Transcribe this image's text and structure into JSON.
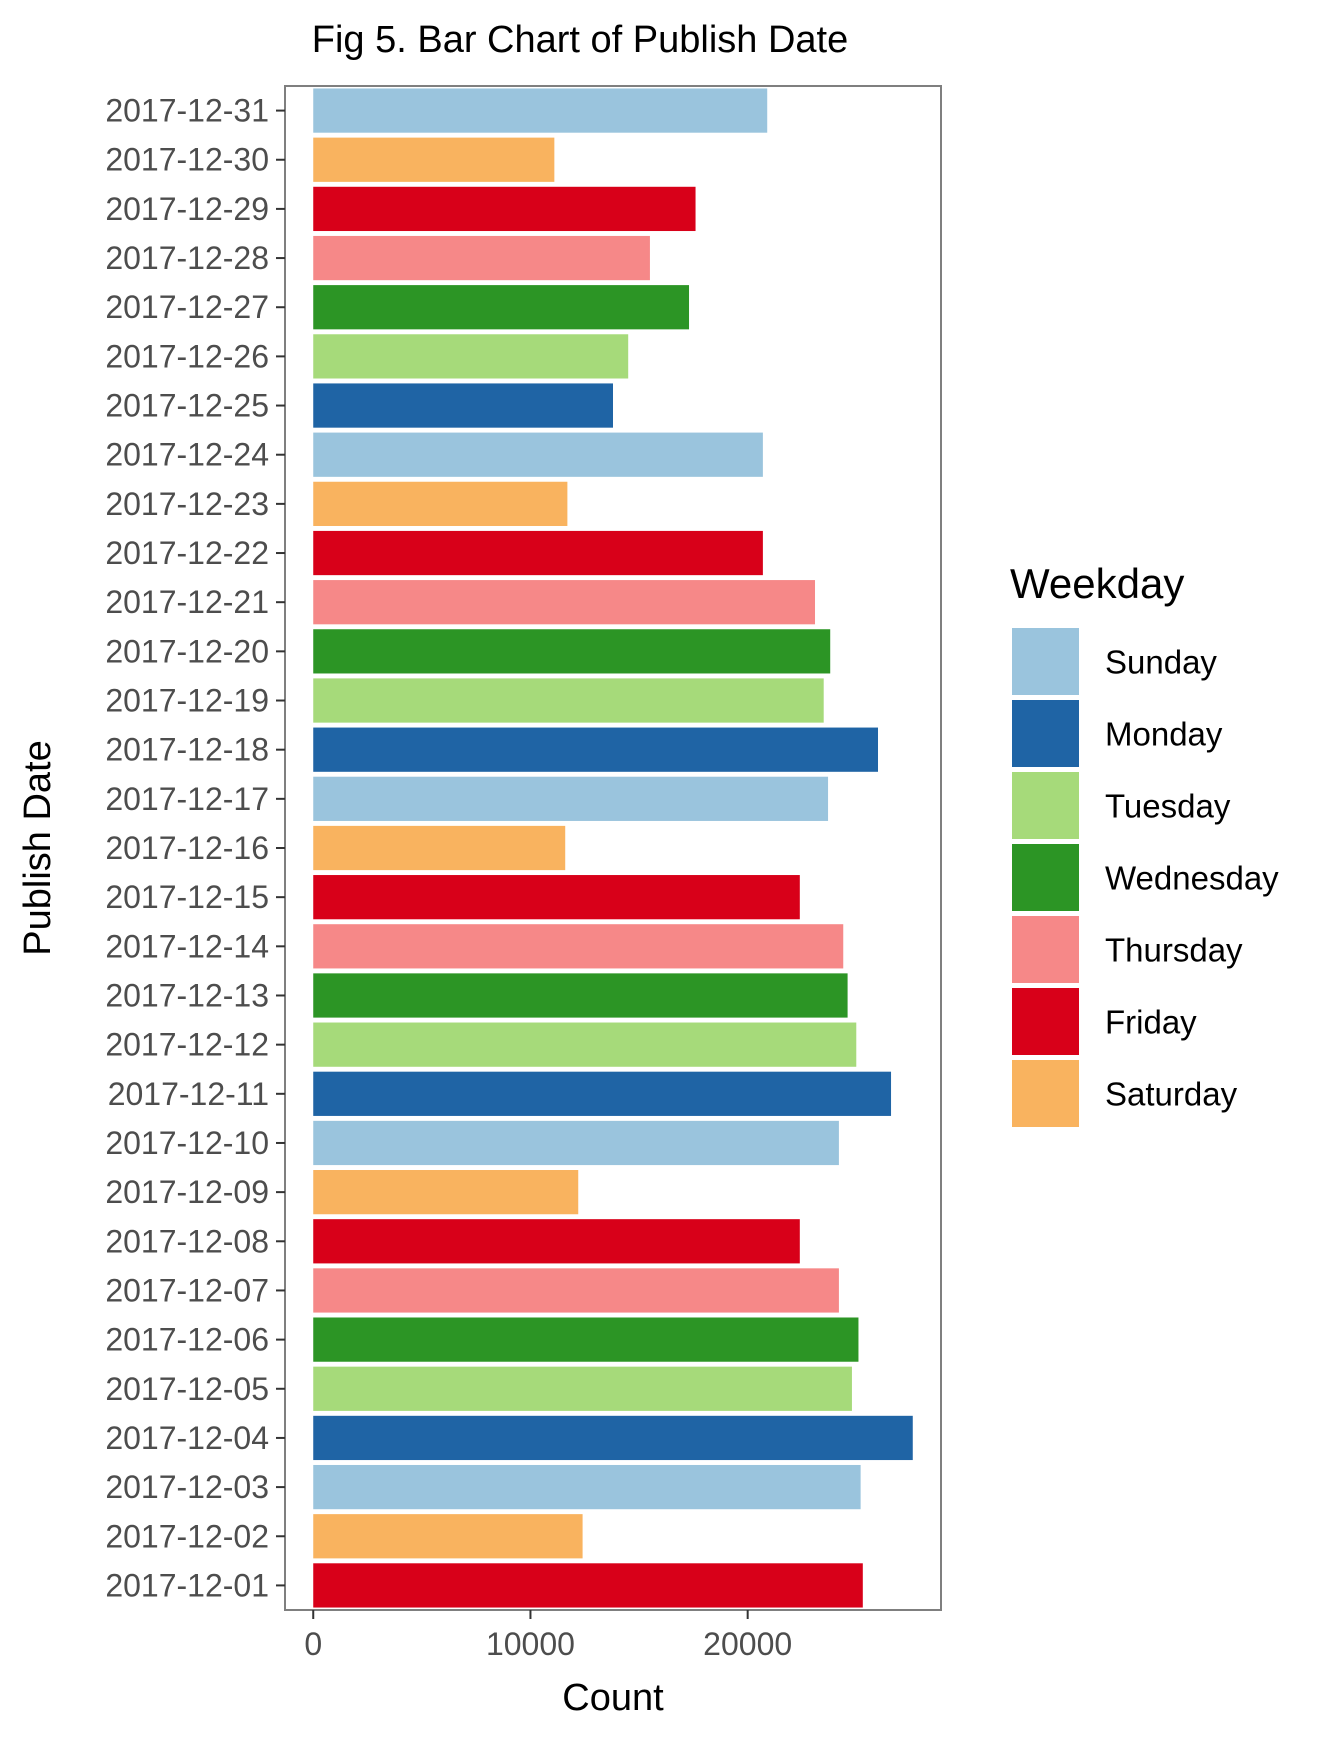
{
  "chart_data": {
    "type": "bar",
    "orientation": "horizontal",
    "title": "Fig 5. Bar Chart of Publish Date",
    "xlabel": "Count",
    "ylabel": "Publish Date",
    "xlim": [
      -1300,
      28900
    ],
    "xticks": [
      "0",
      "10000",
      "20000"
    ],
    "xtick_values": [
      0,
      10000,
      20000
    ],
    "grid": false,
    "legend_position": "right",
    "legend_title": "Weekday",
    "legend": [
      {
        "name": "Sunday",
        "color": "#9ac4dd"
      },
      {
        "name": "Monday",
        "color": "#1f64a5"
      },
      {
        "name": "Tuesday",
        "color": "#a6da7a"
      },
      {
        "name": "Wednesday",
        "color": "#2c9525"
      },
      {
        "name": "Thursday",
        "color": "#f68888"
      },
      {
        "name": "Friday",
        "color": "#d80019"
      },
      {
        "name": "Saturday",
        "color": "#f9b35f"
      }
    ],
    "categories": [
      "2017-12-01",
      "2017-12-02",
      "2017-12-03",
      "2017-12-04",
      "2017-12-05",
      "2017-12-06",
      "2017-12-07",
      "2017-12-08",
      "2017-12-09",
      "2017-12-10",
      "2017-12-11",
      "2017-12-12",
      "2017-12-13",
      "2017-12-14",
      "2017-12-15",
      "2017-12-16",
      "2017-12-17",
      "2017-12-18",
      "2017-12-19",
      "2017-12-20",
      "2017-12-21",
      "2017-12-22",
      "2017-12-23",
      "2017-12-24",
      "2017-12-25",
      "2017-12-26",
      "2017-12-27",
      "2017-12-28",
      "2017-12-29",
      "2017-12-30",
      "2017-12-31"
    ],
    "values": [
      25300,
      12400,
      25200,
      27600,
      24800,
      25100,
      24200,
      22400,
      12200,
      24200,
      26600,
      25000,
      24600,
      24400,
      22400,
      11600,
      23700,
      26000,
      23500,
      23800,
      23100,
      20700,
      11700,
      20700,
      13800,
      14500,
      17300,
      15500,
      17600,
      11100,
      20900
    ],
    "weekday": [
      "Friday",
      "Saturday",
      "Sunday",
      "Monday",
      "Tuesday",
      "Wednesday",
      "Thursday",
      "Friday",
      "Saturday",
      "Sunday",
      "Monday",
      "Tuesday",
      "Wednesday",
      "Thursday",
      "Friday",
      "Saturday",
      "Sunday",
      "Monday",
      "Tuesday",
      "Wednesday",
      "Thursday",
      "Friday",
      "Saturday",
      "Sunday",
      "Monday",
      "Tuesday",
      "Wednesday",
      "Thursday",
      "Friday",
      "Saturday",
      "Sunday"
    ]
  }
}
